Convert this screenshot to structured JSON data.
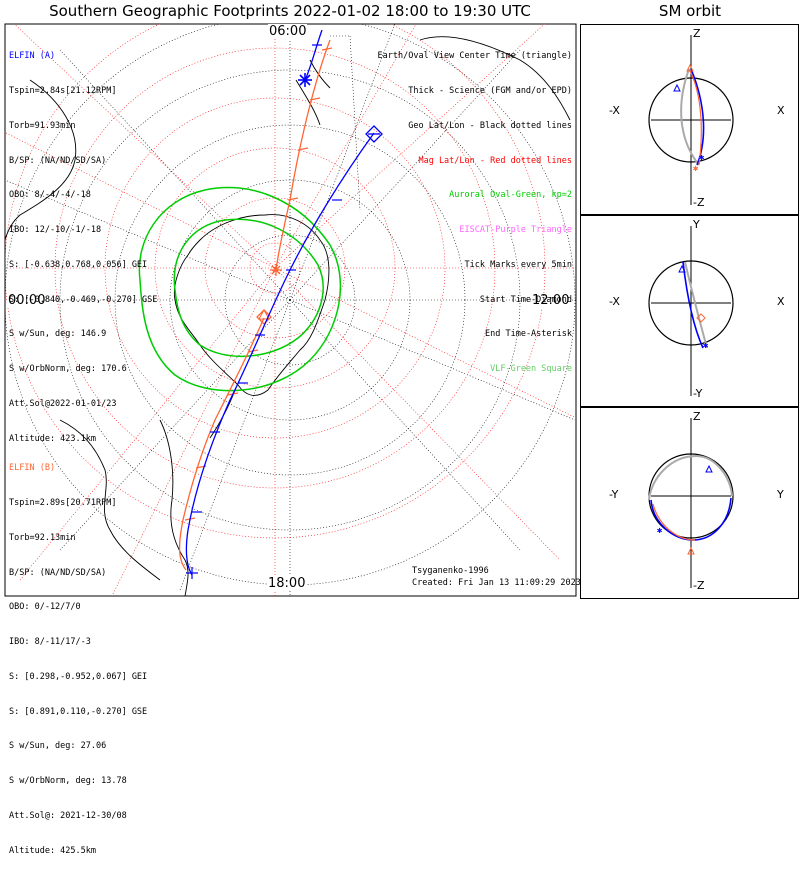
{
  "header": {
    "title": "Southern Geographic Footprints 2022-01-02 18:00 to 19:30 UTC",
    "orbit_title": "SM orbit"
  },
  "clock": {
    "top": "06:00",
    "left": "00:00",
    "right": "12:00",
    "bottom": "18:00"
  },
  "elfin_a": {
    "lines": [
      "ELFIN (A)",
      "Tspin=2.84s[21.12RPM]",
      "Torb=91.93min",
      "B/SP: (NA/ND/SD/SA)",
      "OBO: 8/-4/-4/-18",
      "IBO: 12/-10/-1/-18",
      "S: [-0.638,0.768,0.056] GEI",
      "S: [-0.840,-0.469,-0.270] GSE",
      "S w/Sun, deg: 146.9",
      "S w/OrbNorm, deg: 170.6",
      "Att.Sol@2022-01-01/23",
      "Altitude: 423.1km"
    ],
    "color": "#0000ff"
  },
  "elfin_b": {
    "lines": [
      "ELFIN (B)",
      "Tspin=2.89s[20.71RPM]",
      "Torb=92.13min",
      "B/SP: (NA/ND/SD/SA)",
      "OBO: 0/-12/7/0",
      "IBO: 8/-11/17/-3",
      "S: [0.298,-0.952,0.067] GEI",
      "S: [0.891,0.110,-0.270] GSE",
      "S w/Sun, deg: 27.06",
      "S w/OrbNorm, deg: 13.78",
      "Att.Sol@: 2021-12-30/08",
      "Altitude: 425.5km"
    ],
    "color": "#ff6633"
  },
  "legend": [
    {
      "text": "Earth/Oval View Center Time (triangle)",
      "color": "#000000"
    },
    {
      "text": "Thick - Science (FGM and/or EPD)",
      "color": "#000000"
    },
    {
      "text": "Geo Lat/Lon - Black dotted lines",
      "color": "#000000"
    },
    {
      "text": "Mag Lat/Lon - Red dotted lines",
      "color": "#ff0000"
    },
    {
      "text": "Auroral Oval-Green, kp=2",
      "color": "#00cc00"
    },
    {
      "text": "EISCAT-Purple Triangle",
      "color": "#ff66ff"
    },
    {
      "text": "Tick Marks every 5min",
      "color": "#000000"
    },
    {
      "text": "Start Time-Diamond",
      "color": "#000000"
    },
    {
      "text": "End Time-Asterisk",
      "color": "#000000"
    },
    {
      "text": "VLF-Green Square",
      "color": "#66cc66"
    }
  ],
  "footer": {
    "model": "Tsyganenko-1996",
    "created": "Created: Fri Jan 13 11:09:29 2023"
  },
  "orbit_panels": [
    {
      "top": "Z",
      "bottom": "-Z",
      "left": "-X",
      "right": "X"
    },
    {
      "top": "Y",
      "bottom": "-Y",
      "left": "-X",
      "right": "X"
    },
    {
      "top": "Z",
      "bottom": "-Z",
      "left": "-Y",
      "right": "Y"
    }
  ],
  "colors": {
    "elfin_a": "#0000ff",
    "elfin_b": "#ff6633",
    "oval": "#00cc00",
    "mag_grid": "#ff0000",
    "geo_grid": "#000000"
  }
}
